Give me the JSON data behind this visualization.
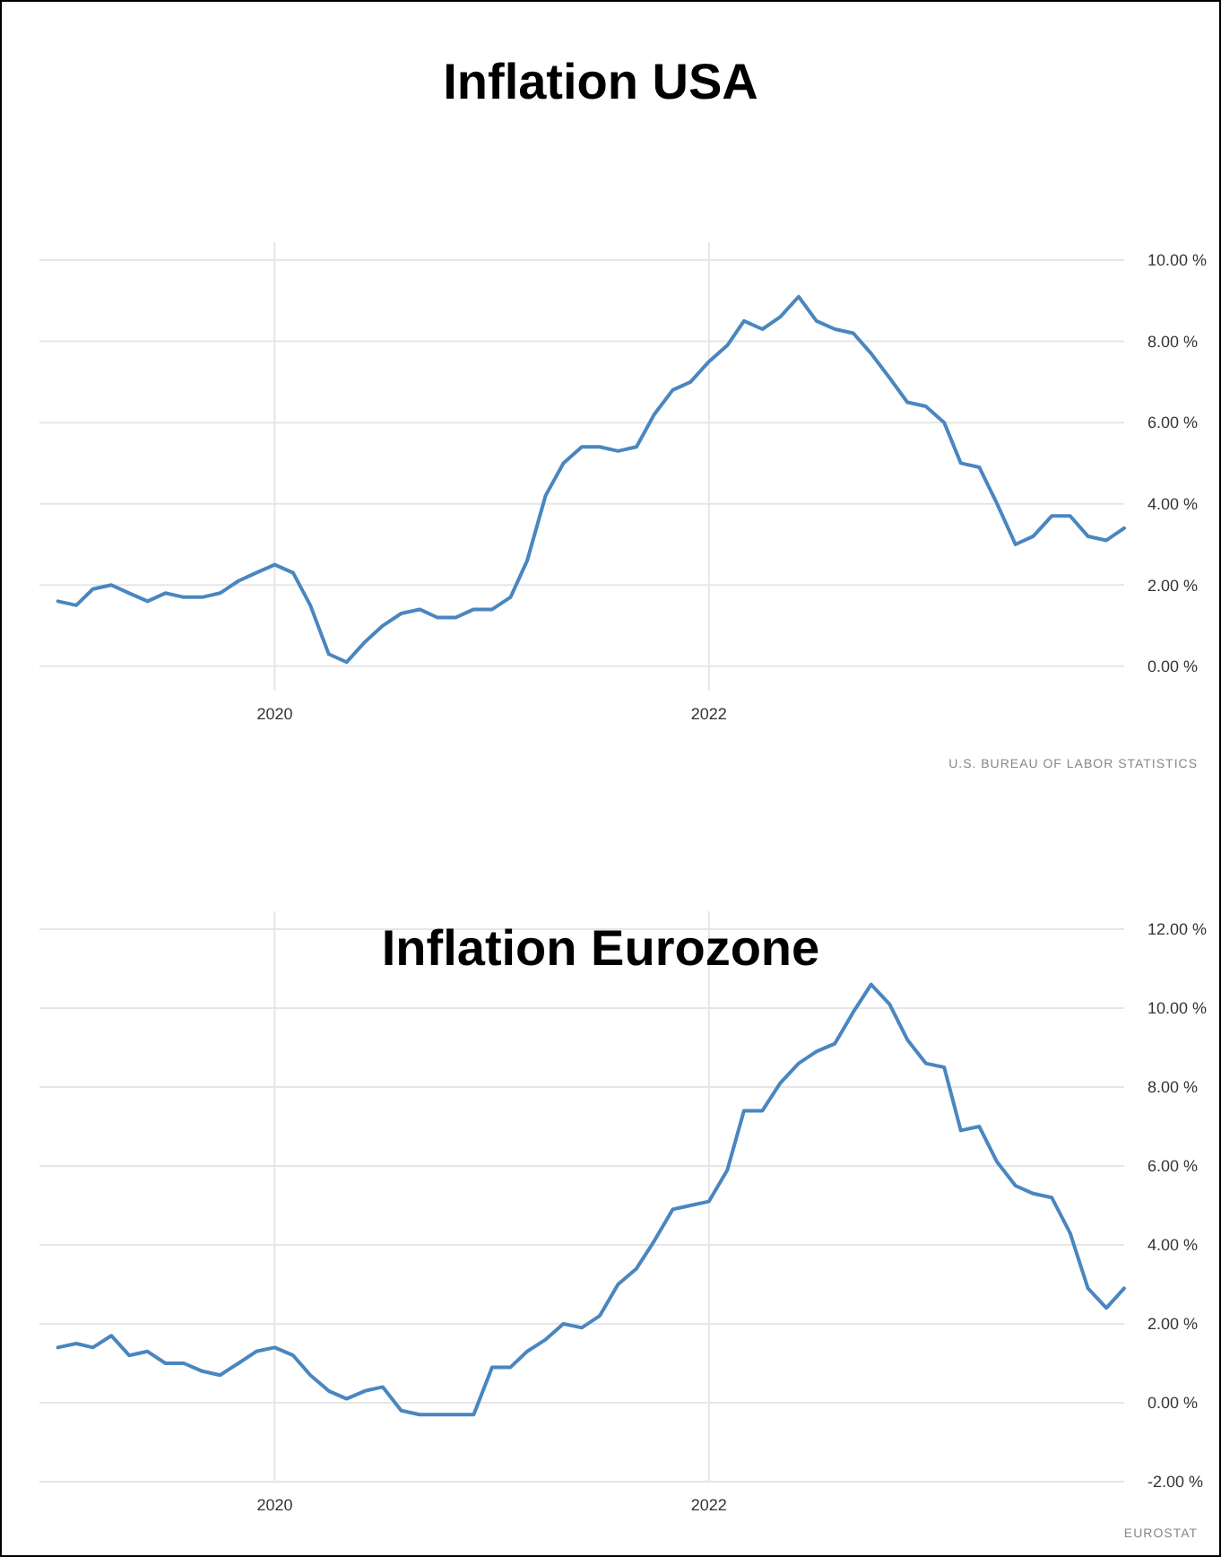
{
  "chart_data": [
    {
      "type": "line",
      "title": "Inflation USA",
      "x": [
        "2019-01",
        "2019-02",
        "2019-03",
        "2019-04",
        "2019-05",
        "2019-06",
        "2019-07",
        "2019-08",
        "2019-09",
        "2019-10",
        "2019-11",
        "2019-12",
        "2020-01",
        "2020-02",
        "2020-03",
        "2020-04",
        "2020-05",
        "2020-06",
        "2020-07",
        "2020-08",
        "2020-09",
        "2020-10",
        "2020-11",
        "2020-12",
        "2021-01",
        "2021-02",
        "2021-03",
        "2021-04",
        "2021-05",
        "2021-06",
        "2021-07",
        "2021-08",
        "2021-09",
        "2021-10",
        "2021-11",
        "2021-12",
        "2022-01",
        "2022-02",
        "2022-03",
        "2022-04",
        "2022-05",
        "2022-06",
        "2022-07",
        "2022-08",
        "2022-09",
        "2022-10",
        "2022-11",
        "2022-12",
        "2023-01",
        "2023-02",
        "2023-03",
        "2023-04",
        "2023-05",
        "2023-06",
        "2023-07",
        "2023-08",
        "2023-09",
        "2023-10",
        "2023-11",
        "2023-12"
      ],
      "series": [
        {
          "color": "#4a86c0",
          "values": [
            1.6,
            1.5,
            1.9,
            2.0,
            1.8,
            1.6,
            1.8,
            1.7,
            1.7,
            1.8,
            2.1,
            2.3,
            2.5,
            2.3,
            1.5,
            0.3,
            0.1,
            0.6,
            1.0,
            1.3,
            1.4,
            1.2,
            1.2,
            1.4,
            1.4,
            1.7,
            2.6,
            4.2,
            5.0,
            5.4,
            5.4,
            5.3,
            5.4,
            6.2,
            6.8,
            7.0,
            7.5,
            7.9,
            8.5,
            8.3,
            8.6,
            9.1,
            8.5,
            8.3,
            8.2,
            7.7,
            7.1,
            6.5,
            6.4,
            6.0,
            5.0,
            4.9,
            4.0,
            3.0,
            3.2,
            3.7,
            3.7,
            3.2,
            3.1,
            3.4
          ]
        }
      ],
      "xlim": [
        "2018-12",
        "2023-12"
      ],
      "xticks": [
        {
          "value": "2020-01",
          "label": "2020"
        },
        {
          "value": "2022-01",
          "label": "2022"
        }
      ],
      "ylim": [
        -0.6,
        10
      ],
      "yticks": [
        {
          "value": 0,
          "label": "0.00 %"
        },
        {
          "value": 2,
          "label": "2.00 %"
        },
        {
          "value": 4,
          "label": "4.00 %"
        },
        {
          "value": 6,
          "label": "6.00 %"
        },
        {
          "value": 8,
          "label": "8.00 %"
        },
        {
          "value": 10,
          "label": "10.00 %"
        }
      ],
      "grid": true,
      "annotations": [
        "U.S. BUREAU OF LABOR STATISTICS"
      ]
    },
    {
      "type": "line",
      "title": "Inflation Eurozone",
      "x": [
        "2019-01",
        "2019-02",
        "2019-03",
        "2019-04",
        "2019-05",
        "2019-06",
        "2019-07",
        "2019-08",
        "2019-09",
        "2019-10",
        "2019-11",
        "2019-12",
        "2020-01",
        "2020-02",
        "2020-03",
        "2020-04",
        "2020-05",
        "2020-06",
        "2020-07",
        "2020-08",
        "2020-09",
        "2020-10",
        "2020-11",
        "2020-12",
        "2021-01",
        "2021-02",
        "2021-03",
        "2021-04",
        "2021-05",
        "2021-06",
        "2021-07",
        "2021-08",
        "2021-09",
        "2021-10",
        "2021-11",
        "2021-12",
        "2022-01",
        "2022-02",
        "2022-03",
        "2022-04",
        "2022-05",
        "2022-06",
        "2022-07",
        "2022-08",
        "2022-09",
        "2022-10",
        "2022-11",
        "2022-12",
        "2023-01",
        "2023-02",
        "2023-03",
        "2023-04",
        "2023-05",
        "2023-06",
        "2023-07",
        "2023-08",
        "2023-09",
        "2023-10",
        "2023-11",
        "2023-12"
      ],
      "series": [
        {
          "color": "#4a86c0",
          "values": [
            1.4,
            1.5,
            1.4,
            1.7,
            1.2,
            1.3,
            1.0,
            1.0,
            0.8,
            0.7,
            1.0,
            1.3,
            1.4,
            1.2,
            0.7,
            0.3,
            0.1,
            0.3,
            0.4,
            -0.2,
            -0.3,
            -0.3,
            -0.3,
            -0.3,
            0.9,
            0.9,
            1.3,
            1.6,
            2.0,
            1.9,
            2.2,
            3.0,
            3.4,
            4.1,
            4.9,
            5.0,
            5.1,
            5.9,
            7.4,
            7.4,
            8.1,
            8.6,
            8.9,
            9.1,
            9.9,
            10.6,
            10.1,
            9.2,
            8.6,
            8.5,
            6.9,
            7.0,
            6.1,
            5.5,
            5.3,
            5.2,
            4.3,
            2.9,
            2.4,
            2.9
          ]
        }
      ],
      "xlim": [
        "2018-12",
        "2023-12"
      ],
      "xticks": [
        {
          "value": "2020-01",
          "label": "2020"
        },
        {
          "value": "2022-01",
          "label": "2022"
        }
      ],
      "ylim": [
        -2,
        12
      ],
      "yticks": [
        {
          "value": -2,
          "label": "-2.00 %"
        },
        {
          "value": 0,
          "label": "0.00 %"
        },
        {
          "value": 2,
          "label": "2.00 %"
        },
        {
          "value": 4,
          "label": "4.00 %"
        },
        {
          "value": 6,
          "label": "6.00 %"
        },
        {
          "value": 8,
          "label": "8.00 %"
        },
        {
          "value": 10,
          "label": "10.00 %"
        },
        {
          "value": 12,
          "label": "12.00 %"
        }
      ],
      "grid": true,
      "annotations": [
        "EUROSTAT"
      ]
    }
  ]
}
